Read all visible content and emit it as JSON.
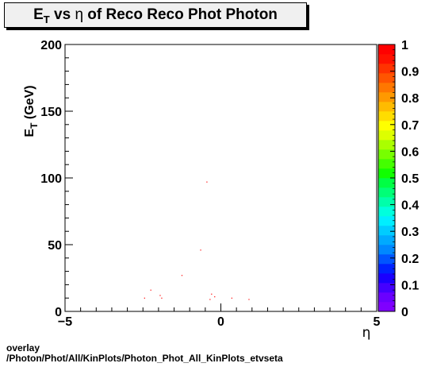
{
  "title": {
    "base": "E",
    "sub": "T",
    "rest_pre": " vs ",
    "symbol": "η",
    "rest_post": " of Reco Reco Phot Photon"
  },
  "footer": {
    "line1": "overlay",
    "line2": "/Photon/Phot/All/KinPlots/Photon_Phot_All_KinPlots_etvseta"
  },
  "chart_data": {
    "type": "scatter",
    "title": "E_T vs η of Reco Reco Phot Photon",
    "xlabel": "η",
    "ylabel": "E_T (GeV)",
    "ylabel_base": "E",
    "ylabel_sub": "T",
    "ylabel_rest": " (GeV)",
    "xlim": [
      -5,
      5
    ],
    "ylim": [
      0,
      200
    ],
    "x_ticks": [
      -5,
      0,
      5
    ],
    "y_ticks": [
      0,
      50,
      100,
      150,
      200
    ],
    "grid": false,
    "points": [
      {
        "x": -0.45,
        "y": 97
      },
      {
        "x": -0.65,
        "y": 46
      },
      {
        "x": -1.25,
        "y": 27
      },
      {
        "x": -2.25,
        "y": 16
      },
      {
        "x": -2.45,
        "y": 10
      },
      {
        "x": -1.95,
        "y": 12
      },
      {
        "x": -1.9,
        "y": 10
      },
      {
        "x": -0.3,
        "y": 13
      },
      {
        "x": -0.35,
        "y": 9
      },
      {
        "x": -0.2,
        "y": 11
      },
      {
        "x": 0.35,
        "y": 10
      },
      {
        "x": 0.9,
        "y": 9
      }
    ],
    "point_color": "#ff0000",
    "colorbar": {
      "min": 0,
      "max": 1,
      "tick_labels": [
        "0",
        "0.1",
        "0.2",
        "0.3",
        "0.4",
        "0.5",
        "0.6",
        "0.7",
        "0.8",
        "0.9",
        "1"
      ],
      "colors": [
        "#7f00ff",
        "#6a00ff",
        "#4400ff",
        "#1a00ff",
        "#0022ff",
        "#0055ff",
        "#0088ff",
        "#00aaff",
        "#00ccff",
        "#00eeff",
        "#00ffdd",
        "#00ffaa",
        "#00ff77",
        "#00ff44",
        "#11ff00",
        "#44ff00",
        "#77ff00",
        "#aaff00",
        "#ddff00",
        "#ffff00",
        "#ffdd00",
        "#ffbb00",
        "#ff9900",
        "#ff7700",
        "#ff5500",
        "#ff3300",
        "#ff1100",
        "#ff0000"
      ]
    }
  }
}
